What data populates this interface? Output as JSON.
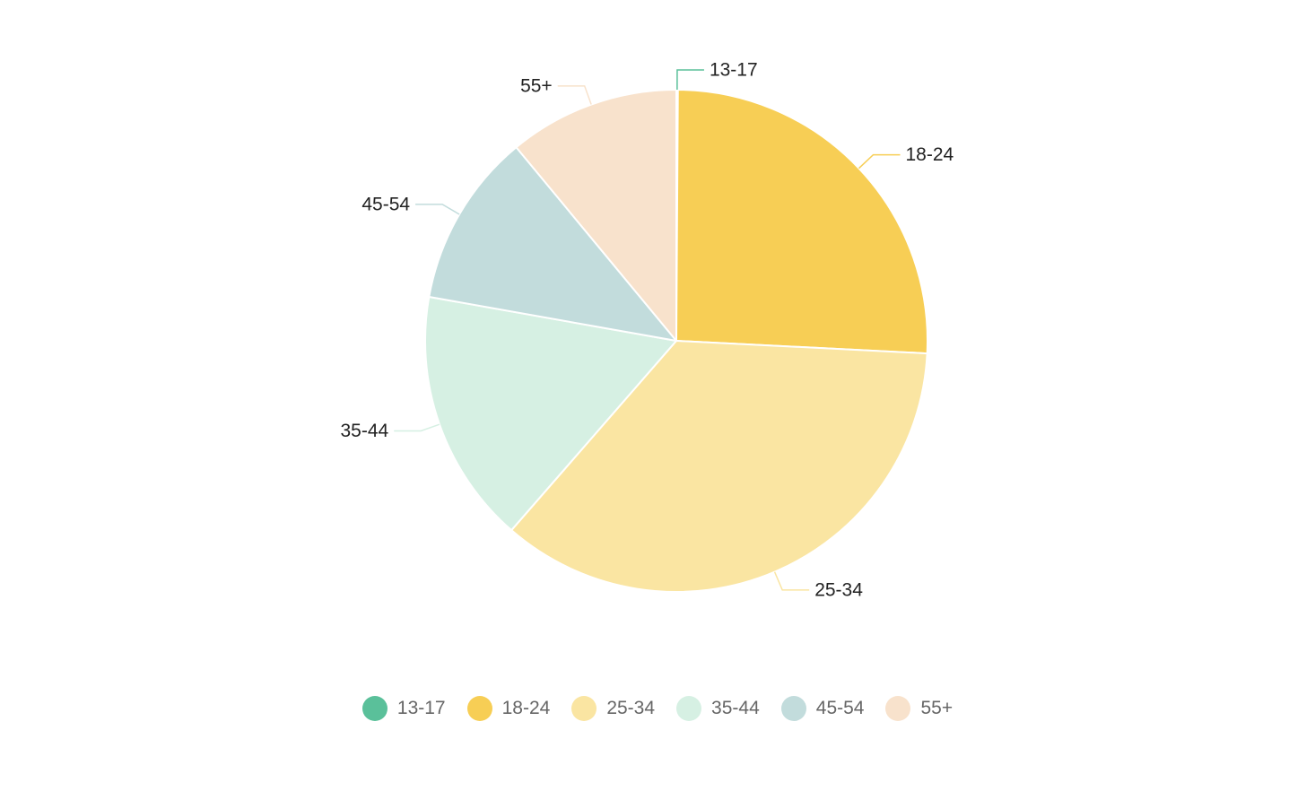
{
  "chart_data": {
    "type": "pie",
    "title": "",
    "categories": [
      "13-17",
      "18-24",
      "25-34",
      "35-44",
      "45-54",
      "55+"
    ],
    "values": [
      0.1,
      25.7,
      35.6,
      16.4,
      11.2,
      11.0
    ],
    "colors": [
      "#5ac09a",
      "#f7ce55",
      "#fae5a2",
      "#d6f0e3",
      "#c2dcdc",
      "#f8e2cc"
    ],
    "legend_position": "bottom"
  }
}
